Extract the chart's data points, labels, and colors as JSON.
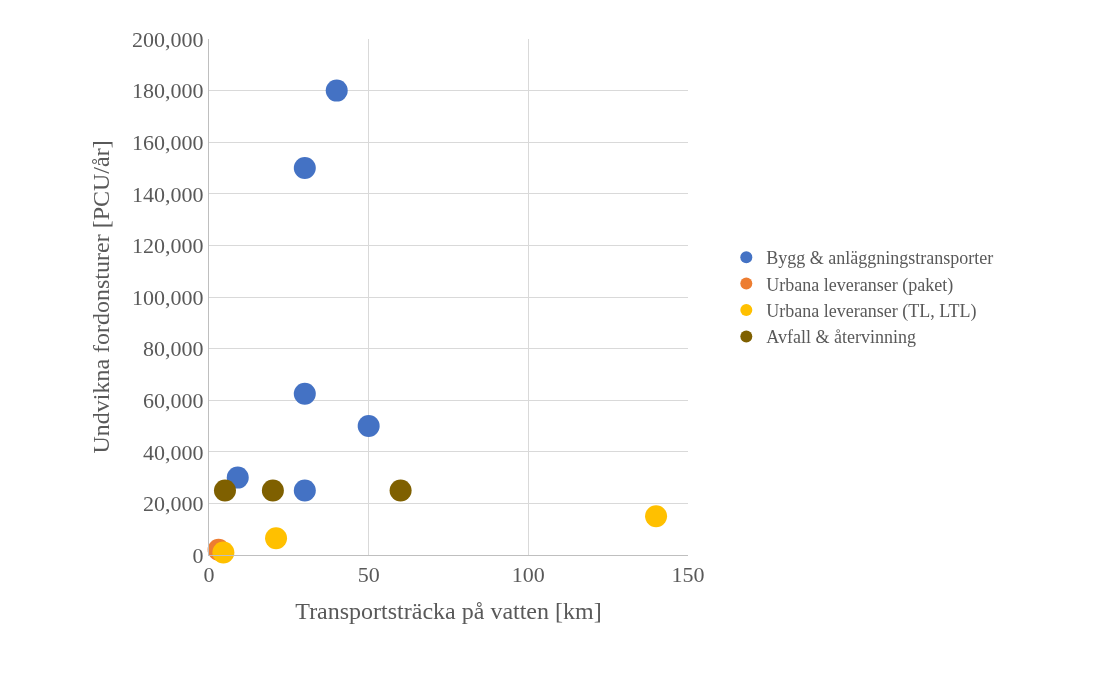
{
  "chart_data": {
    "type": "scatter",
    "xlabel": "Transportsträcka på vatten [km]",
    "ylabel": "Undvikna fordonsturer [PCU/år]",
    "xlim": [
      0,
      150
    ],
    "xticks": [
      0,
      50,
      100,
      150
    ],
    "ylim": [
      0,
      200000
    ],
    "yticks": [
      {
        "value": 0,
        "label": "0"
      },
      {
        "value": 20000,
        "label": "20,000"
      },
      {
        "value": 40000,
        "label": "40,000"
      },
      {
        "value": 60000,
        "label": "60,000"
      },
      {
        "value": 80000,
        "label": "80,000"
      },
      {
        "value": 100000,
        "label": "100,000"
      },
      {
        "value": 120000,
        "label": "120,000"
      },
      {
        "value": 140000,
        "label": "140,000"
      },
      {
        "value": 160000,
        "label": "160,000"
      },
      {
        "value": 180000,
        "label": "180,000"
      },
      {
        "value": 200000,
        "label": "200,000"
      }
    ],
    "grid": true,
    "legend": "right",
    "marker": "circle",
    "series": [
      {
        "name": "Bygg & anläggningstransporter",
        "color": "#4472c4",
        "x": [
          40,
          30,
          30,
          50,
          9,
          30
        ],
        "values": [
          180000,
          150000,
          62500,
          50000,
          30000,
          25000
        ]
      },
      {
        "name": "Urbana leveranser (paket)",
        "color": "#ed7d31",
        "x": [
          3
        ],
        "values": [
          2000
        ]
      },
      {
        "name": "Urbana leveranser (TL, LTL)",
        "color": "#ffc000",
        "x": [
          4.5,
          21,
          140
        ],
        "values": [
          1000,
          6500,
          15000
        ]
      },
      {
        "name": "Avfall & återvinning",
        "color": "#7f6000",
        "x": [
          5,
          20,
          60
        ],
        "values": [
          25000,
          25000,
          25000
        ]
      }
    ]
  }
}
